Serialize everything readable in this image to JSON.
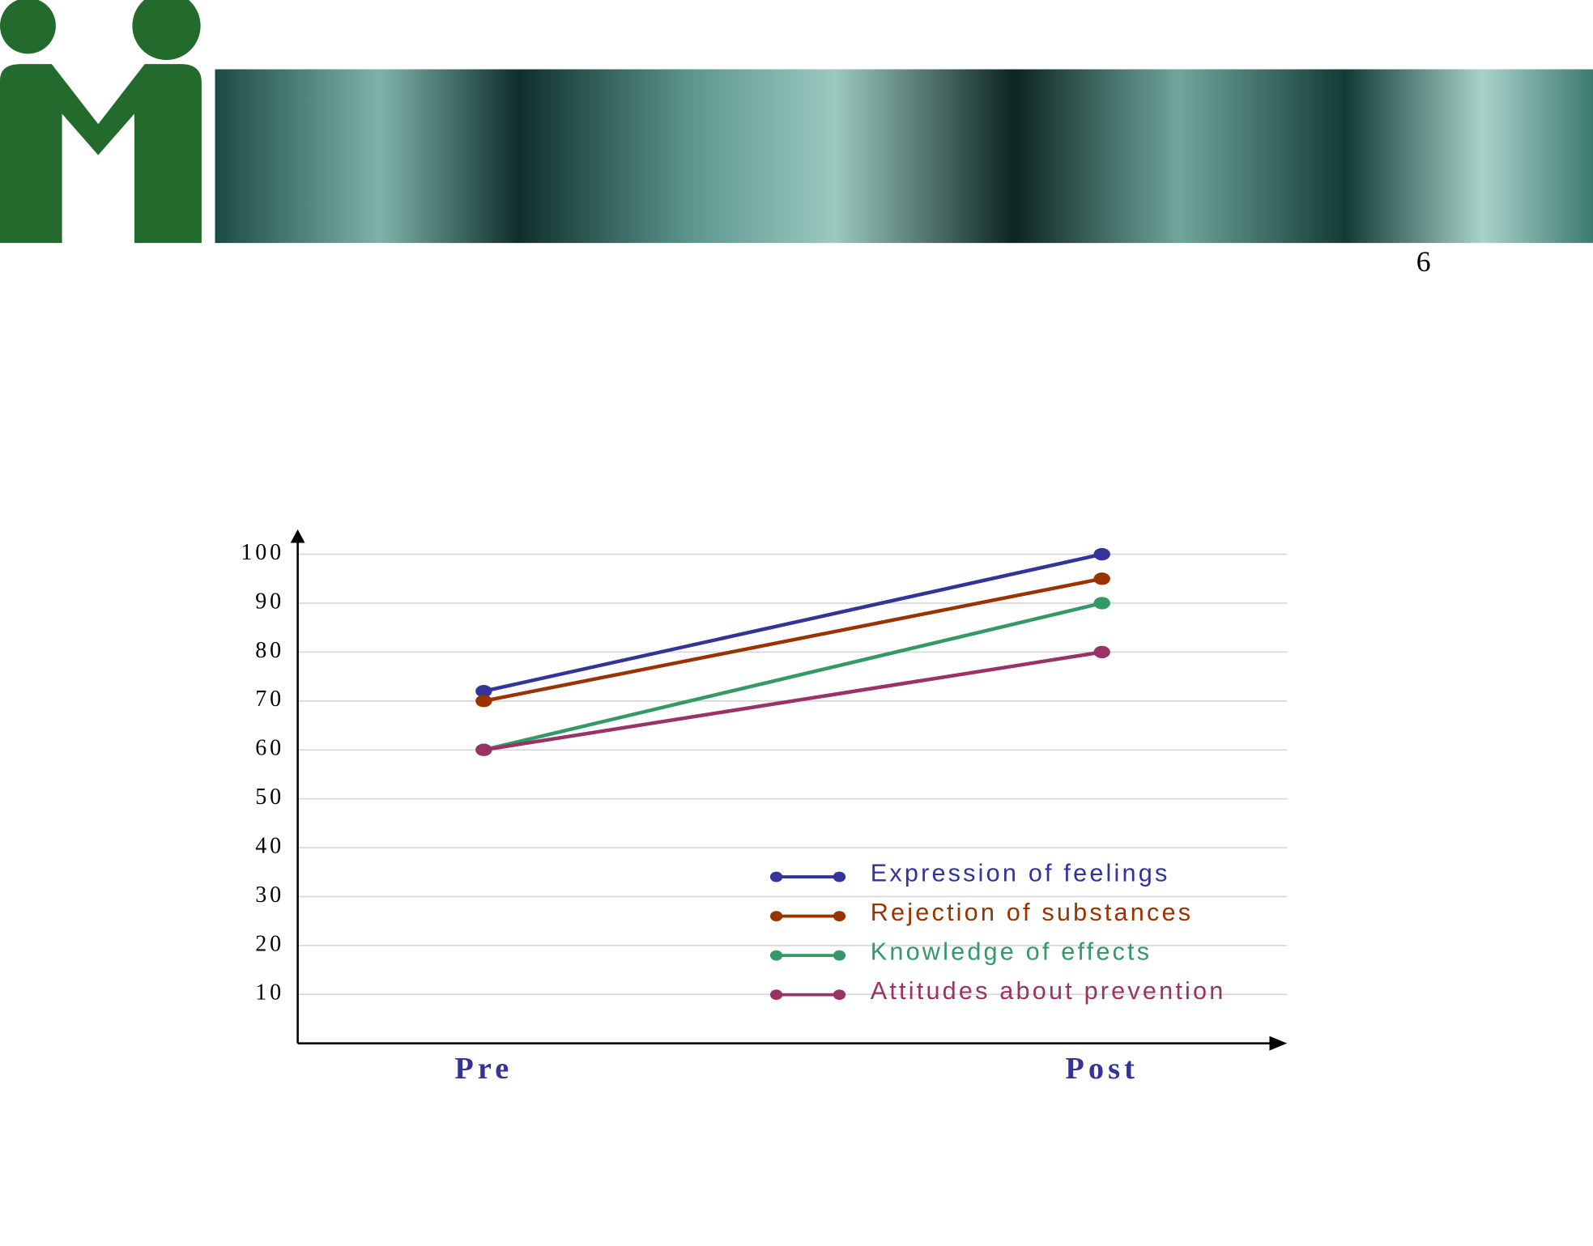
{
  "page_number": "6",
  "chart_data": {
    "type": "line",
    "categories": [
      "Pre",
      "Post"
    ],
    "series": [
      {
        "name": "Expression of feelings",
        "color": "#333399",
        "values": [
          72,
          100
        ]
      },
      {
        "name": "Rejection of substances",
        "color": "#993300",
        "values": [
          70,
          95
        ]
      },
      {
        "name": "Knowledge of effects",
        "color": "#339966",
        "values": [
          60,
          90
        ]
      },
      {
        "name": "Attitudes about prevention",
        "color": "#993366",
        "values": [
          60,
          80
        ]
      }
    ],
    "ylim": [
      0,
      100
    ],
    "yticks": [
      10,
      20,
      30,
      40,
      50,
      60,
      70,
      80,
      90,
      100
    ],
    "grid": true,
    "legend": "lower-right"
  }
}
